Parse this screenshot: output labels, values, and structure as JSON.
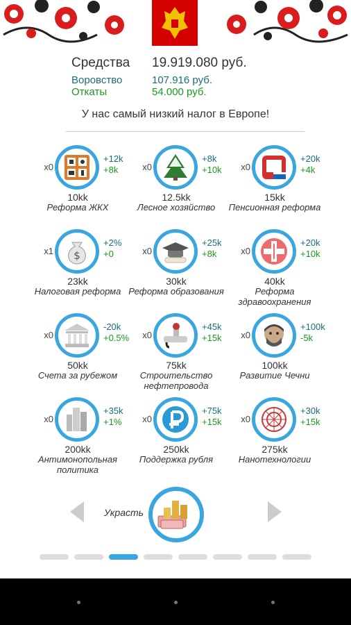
{
  "stats": {
    "funds": {
      "label": "Средства",
      "value": "19.919.080 руб."
    },
    "theft": {
      "label": "Воровство",
      "value": "107.916 руб."
    },
    "kickbacks": {
      "label": "Откаты",
      "value": "54.000 руб."
    }
  },
  "slogan": "У нас самый низкий налог в Европе!",
  "items": [
    {
      "count": "x0",
      "effect1": "+12k",
      "effect2": "+8k",
      "price": "10kk",
      "name": "Реформа ЖКХ",
      "icon": "utilities-icon"
    },
    {
      "count": "x0",
      "effect1": "+8k",
      "effect2": "+10k",
      "price": "12.5kk",
      "name": "Лесное хозяйство",
      "icon": "forest-icon"
    },
    {
      "count": "x0",
      "effect1": "+20k",
      "effect2": "+4k",
      "price": "15kk",
      "name": "Пенсионная реформа",
      "icon": "pension-fund-icon"
    },
    {
      "count": "x1",
      "effect1": "+2%",
      "effect2": "+0",
      "price": "23kk",
      "name": "Налоговая реформа",
      "icon": "money-bag-icon"
    },
    {
      "count": "x0",
      "effect1": "+25k",
      "effect2": "+8k",
      "price": "30kk",
      "name": "Реформа образования",
      "icon": "graduation-cap-icon"
    },
    {
      "count": "x0",
      "effect1": "+20k",
      "effect2": "+10k",
      "price": "40kk",
      "name": "Реформа здравоохранения",
      "icon": "medical-icon"
    },
    {
      "count": "x0",
      "effect1": "-20k",
      "effect2": "+0.5%",
      "price": "50kk",
      "name": "Счета за рубежом",
      "icon": "bank-icon"
    },
    {
      "count": "x0",
      "effect1": "+45k",
      "effect2": "+15k",
      "price": "75kk",
      "name": "Строительство нефтепровода",
      "icon": "pipeline-icon"
    },
    {
      "count": "x0",
      "effect1": "+100k",
      "effect2": "-5k",
      "price": "100kk",
      "name": "Развитие Чечни",
      "icon": "portrait-icon"
    },
    {
      "count": "x0",
      "effect1": "+35k",
      "effect2": "+1%",
      "price": "200kk",
      "name": "Антимонопольная политика",
      "icon": "skyscrapers-icon"
    },
    {
      "count": "x0",
      "effect1": "+75k",
      "effect2": "+15k",
      "price": "250kk",
      "name": "Поддержка рубля",
      "icon": "ruble-icon"
    },
    {
      "count": "x0",
      "effect1": "+30k",
      "effect2": "+15k",
      "price": "275kk",
      "name": "Нанотехнологии",
      "icon": "fullerene-icon"
    }
  ],
  "steal": {
    "label": "Украсть",
    "icon": "coins-banknotes-icon"
  },
  "pager": {
    "total": 8,
    "active": 3
  },
  "colors": {
    "accent": "#3aa6e0",
    "teal": "#1a6e7a",
    "green": "#1a9a1a",
    "flag_red": "#d40000"
  }
}
